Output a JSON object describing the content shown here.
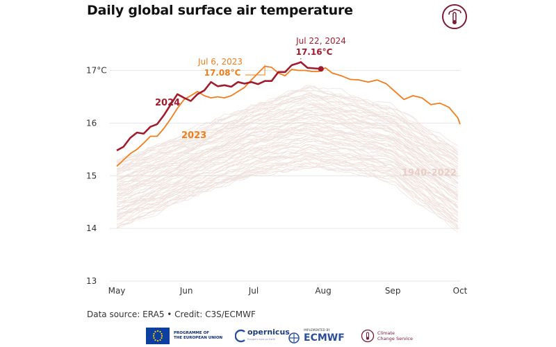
{
  "title": "Daily global surface air temperature",
  "source": "Data source: ERA5 • Credit: C3S/ECMWF",
  "footer": {
    "eu": "PROGRAMME OF\nTHE EUROPEAN UNION",
    "copernicus": "opernicus",
    "copernicus_sub": "Europe's eyes on Earth",
    "ecmwf_sub": "IMPLEMENTED BY",
    "ecmwf": "ECMWF",
    "ccs": "Climate\nChange Service"
  },
  "colors": {
    "y2024": "#a01c2c",
    "y2023": "#f07d1a",
    "hist": "#ead9d2",
    "grid": "#e6e6e6",
    "hist_label": "#e8cec6"
  },
  "chart_data": {
    "type": "line",
    "title": "Daily global surface air temperature",
    "xlabel": "",
    "ylabel": "",
    "x_tick_labels": [
      "May",
      "Jun",
      "Jul",
      "Aug",
      "Sep",
      "Oct"
    ],
    "y_tick_labels": [
      "13",
      "14",
      "15",
      "16",
      "17°C"
    ],
    "y_ticks": [
      13,
      14,
      15,
      16,
      17
    ],
    "ylim": [
      13,
      17.6
    ],
    "xlim": [
      "2024-05-01",
      "2024-10-01"
    ],
    "grid": "horizontal",
    "series": [
      {
        "name": "2024",
        "color": "#a01c2c",
        "x": [
          "2024-05-01",
          "2024-05-04",
          "2024-05-07",
          "2024-05-10",
          "2024-05-13",
          "2024-05-16",
          "2024-05-19",
          "2024-05-22",
          "2024-05-25",
          "2024-05-28",
          "2024-05-31",
          "2024-06-03",
          "2024-06-06",
          "2024-06-09",
          "2024-06-12",
          "2024-06-15",
          "2024-06-18",
          "2024-06-21",
          "2024-06-24",
          "2024-06-27",
          "2024-06-30",
          "2024-07-03",
          "2024-07-06",
          "2024-07-09",
          "2024-07-12",
          "2024-07-15",
          "2024-07-18",
          "2024-07-21",
          "2024-07-22",
          "2024-07-25",
          "2024-07-28",
          "2024-07-31"
        ],
        "values": [
          15.48,
          15.55,
          15.72,
          15.82,
          15.8,
          15.93,
          15.98,
          16.15,
          16.35,
          16.55,
          16.48,
          16.42,
          16.55,
          16.62,
          16.78,
          16.7,
          16.72,
          16.69,
          16.78,
          16.75,
          16.78,
          16.74,
          16.8,
          16.8,
          16.97,
          16.97,
          17.1,
          17.14,
          17.16,
          17.05,
          17.04,
          17.03
        ]
      },
      {
        "name": "2023",
        "color": "#f07d1a",
        "x": [
          "2024-05-01",
          "2024-05-04",
          "2024-05-07",
          "2024-05-10",
          "2024-05-13",
          "2024-05-16",
          "2024-05-19",
          "2024-05-22",
          "2024-05-25",
          "2024-05-28",
          "2024-05-31",
          "2024-06-03",
          "2024-06-06",
          "2024-06-09",
          "2024-06-12",
          "2024-06-15",
          "2024-06-18",
          "2024-06-21",
          "2024-06-24",
          "2024-06-27",
          "2024-06-30",
          "2024-07-03",
          "2024-07-06",
          "2024-07-09",
          "2024-07-12",
          "2024-07-15",
          "2024-07-18",
          "2024-07-21",
          "2024-07-24",
          "2024-07-27",
          "2024-07-30",
          "2024-08-02",
          "2024-08-05",
          "2024-08-09",
          "2024-08-13",
          "2024-08-17",
          "2024-08-21",
          "2024-08-25",
          "2024-08-29",
          "2024-09-02",
          "2024-09-06",
          "2024-09-10",
          "2024-09-14",
          "2024-09-18",
          "2024-09-22",
          "2024-09-26",
          "2024-09-30",
          "2024-10-01"
        ],
        "values": [
          15.18,
          15.3,
          15.42,
          15.5,
          15.62,
          15.75,
          15.75,
          15.9,
          16.08,
          16.28,
          16.45,
          16.52,
          16.6,
          16.52,
          16.48,
          16.5,
          16.48,
          16.52,
          16.6,
          16.68,
          16.82,
          16.95,
          17.08,
          17.06,
          16.95,
          16.9,
          17.02,
          17.0,
          17.0,
          16.98,
          16.98,
          17.05,
          16.95,
          16.9,
          16.83,
          16.82,
          16.78,
          16.82,
          16.75,
          16.6,
          16.45,
          16.52,
          16.48,
          16.35,
          16.38,
          16.3,
          16.1,
          15.98
        ]
      }
    ],
    "background_series_label": "1940–2022",
    "background_envelope": {
      "x": [
        "2024-05-01",
        "2024-06-01",
        "2024-07-01",
        "2024-07-25",
        "2024-08-15",
        "2024-09-01",
        "2024-10-01"
      ],
      "upper": [
        15.3,
        15.8,
        16.35,
        16.7,
        16.5,
        16.3,
        15.5
      ],
      "lower": [
        14.0,
        14.55,
        15.0,
        15.15,
        15.05,
        14.9,
        13.9
      ]
    },
    "annotations": [
      {
        "text_date": "Jul 22, 2024",
        "text_value": "17.16°C",
        "series": "2024",
        "x": "2024-07-22",
        "y": 17.16
      },
      {
        "text_date": "Jul 6, 2023",
        "text_value": "17.08°C",
        "series": "2023",
        "x": "2024-07-06",
        "y": 17.08
      }
    ],
    "series_labels": [
      {
        "text": "2024",
        "series": "2024"
      },
      {
        "text": "2023",
        "series": "2023"
      },
      {
        "text": "1940–2022",
        "series": "background"
      }
    ]
  }
}
